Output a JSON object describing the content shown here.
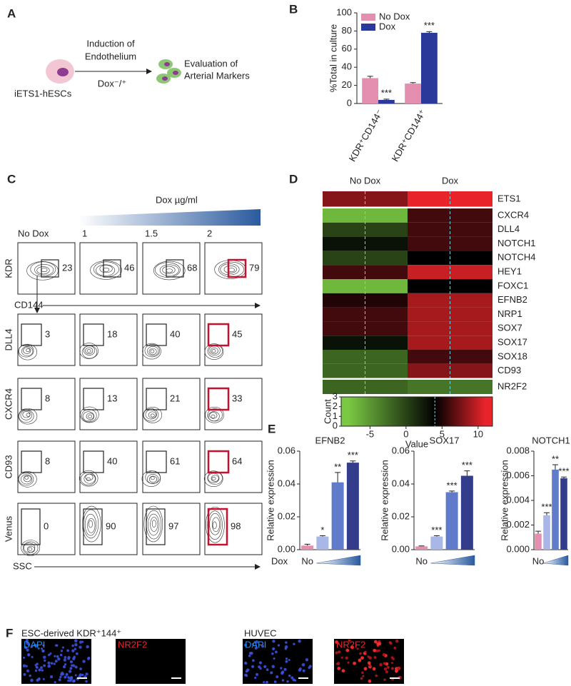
{
  "panel_labels": [
    "A",
    "B",
    "C",
    "D",
    "E",
    "F"
  ],
  "panel_a": {
    "step": [
      "Induction of",
      "Endothelium"
    ],
    "treatment": "Dox⁻/⁺",
    "result": [
      "Evaluation of",
      "Arterial Markers"
    ],
    "cell_line": "iETS1-hESCs"
  },
  "chart_data": [
    {
      "type": "bar",
      "ylabel": "%Total in culture",
      "categories": [
        "KDR⁺CD144⁻",
        "KDR⁺CD144⁺"
      ],
      "series": [
        {
          "name": "No Dox",
          "color": "#e58fb0",
          "values": [
            28,
            22
          ],
          "errors": [
            2,
            1
          ]
        },
        {
          "name": "Dox",
          "color": "#2b3a9a",
          "values": [
            4,
            78
          ],
          "errors": [
            0.8,
            1.2
          ],
          "significance": [
            "***",
            "***"
          ]
        }
      ],
      "ylim": [
        0,
        100
      ],
      "yticks": [
        0,
        20,
        40,
        60,
        80,
        100
      ],
      "legend": "upper left"
    },
    {
      "type": "heatmap",
      "columns": [
        "No Dox",
        "Dox"
      ],
      "rows": [
        "ETS1",
        "CXCR4",
        "DLL4",
        "NOTCH1",
        "NOTCH4",
        "HEY1",
        "FOXC1",
        "EFNB2",
        "NRP1",
        "SOX7",
        "SOX17",
        "SOX18",
        "CD93",
        "NR2F2"
      ],
      "values": [
        [
          8,
          11
        ],
        [
          -7,
          6
        ],
        [
          0,
          6
        ],
        [
          3,
          6
        ],
        [
          0,
          4
        ],
        [
          6,
          10
        ],
        [
          -7,
          4
        ],
        [
          5,
          9
        ],
        [
          6,
          9
        ],
        [
          6,
          9
        ],
        [
          3,
          9
        ],
        [
          -2,
          6
        ],
        [
          -2,
          8
        ],
        [
          -2,
          -3
        ]
      ],
      "colors": [
        "#7ac943",
        "#000000",
        "#e8242a"
      ],
      "color_stops": [
        -8,
        4,
        11
      ],
      "key": {
        "ylabel": "Count",
        "xlabel": "Value",
        "xlim": [
          -9,
          12
        ],
        "xticks": [
          -5,
          0,
          5,
          10
        ],
        "ylim": [
          0,
          3
        ],
        "yticks": [
          0,
          1,
          2,
          3
        ]
      }
    },
    {
      "type": "bar",
      "title": "EFNB2",
      "ylabel": "Relative expression",
      "xlabel": "Dox",
      "categories": [
        "No",
        null,
        null,
        null
      ],
      "colors": [
        "#e58fb0",
        "#a9b7e6",
        "#5f7bc9",
        "#333d8c"
      ],
      "values": [
        0.0025,
        0.008,
        0.041,
        0.053
      ],
      "errors": [
        0.0008,
        0.0005,
        0.006,
        0.001
      ],
      "significance": [
        null,
        "*",
        "**",
        "***"
      ],
      "ylim": [
        0,
        0.06
      ],
      "yticks": [
        {
          "value": 0,
          "label": "0.00"
        },
        {
          "value": 0.02,
          "label": "0.02"
        },
        {
          "value": 0.04,
          "label": "0.04"
        },
        {
          "value": 0.06,
          "label": "0.06"
        }
      ]
    },
    {
      "type": "bar",
      "title": "SOX17",
      "ylabel": "Relative expression",
      "categories": [
        "No",
        null,
        null,
        null
      ],
      "colors": [
        "#e58fb0",
        "#a9b7e6",
        "#5f7bc9",
        "#333d8c"
      ],
      "values": [
        0.002,
        0.008,
        0.035,
        0.045
      ],
      "errors": [
        0.0003,
        0.0005,
        0.0007,
        0.003
      ],
      "significance": [
        null,
        "***",
        "***",
        "***"
      ],
      "ylim": [
        0,
        0.06
      ],
      "yticks": [
        {
          "value": 0,
          "label": "0.00"
        },
        {
          "value": 0.02,
          "label": "0.02"
        },
        {
          "value": 0.04,
          "label": "0.04"
        },
        {
          "value": 0.06,
          "label": "0.06"
        }
      ]
    },
    {
      "type": "bar",
      "title": "NOTCH1",
      "ylabel": "Relative expression",
      "categories": [
        "No",
        null,
        null,
        null
      ],
      "colors": [
        "#e58fb0",
        "#a9b7e6",
        "#5f7bc9",
        "#333d8c"
      ],
      "values": [
        0.0013,
        0.0028,
        0.0065,
        0.0058
      ],
      "errors": [
        0.0002,
        0.0002,
        0.0004,
        0.0001
      ],
      "significance": [
        null,
        "***",
        "**",
        "***"
      ],
      "ylim": [
        0,
        0.008
      ],
      "yticks": [
        {
          "value": 0,
          "label": "0.000"
        },
        {
          "value": 0.002,
          "label": "0.002"
        },
        {
          "value": 0.004,
          "label": "0.004"
        },
        {
          "value": 0.006,
          "label": "0.006"
        },
        {
          "value": 0.008,
          "label": "0.008"
        }
      ]
    }
  ],
  "panel_c": {
    "title": "Dox µg/ml",
    "doses": [
      "No Dox",
      "1",
      "1.5",
      "2"
    ],
    "highlight": 3,
    "xlabel": "SSC",
    "rows": [
      {
        "marker": "KDR",
        "xlabel": "CD144",
        "gates": [
          "23",
          "46",
          "68",
          "79"
        ]
      },
      {
        "marker": "DLL4",
        "gates": [
          "3",
          "18",
          "40",
          "45"
        ]
      },
      {
        "marker": "CXCR4",
        "gates": [
          "8",
          "13",
          "21",
          "33"
        ]
      },
      {
        "marker": "CD93",
        "gates": [
          "8",
          "40",
          "61",
          "64"
        ]
      },
      {
        "marker": "Venus",
        "gates": [
          "0",
          "90",
          "97",
          "98"
        ]
      }
    ]
  },
  "panel_f": {
    "left_title": "ESC-derived KDR⁺144⁺",
    "right_title": "HUVEC",
    "stains": [
      "DAPI",
      "NR2F2"
    ]
  }
}
